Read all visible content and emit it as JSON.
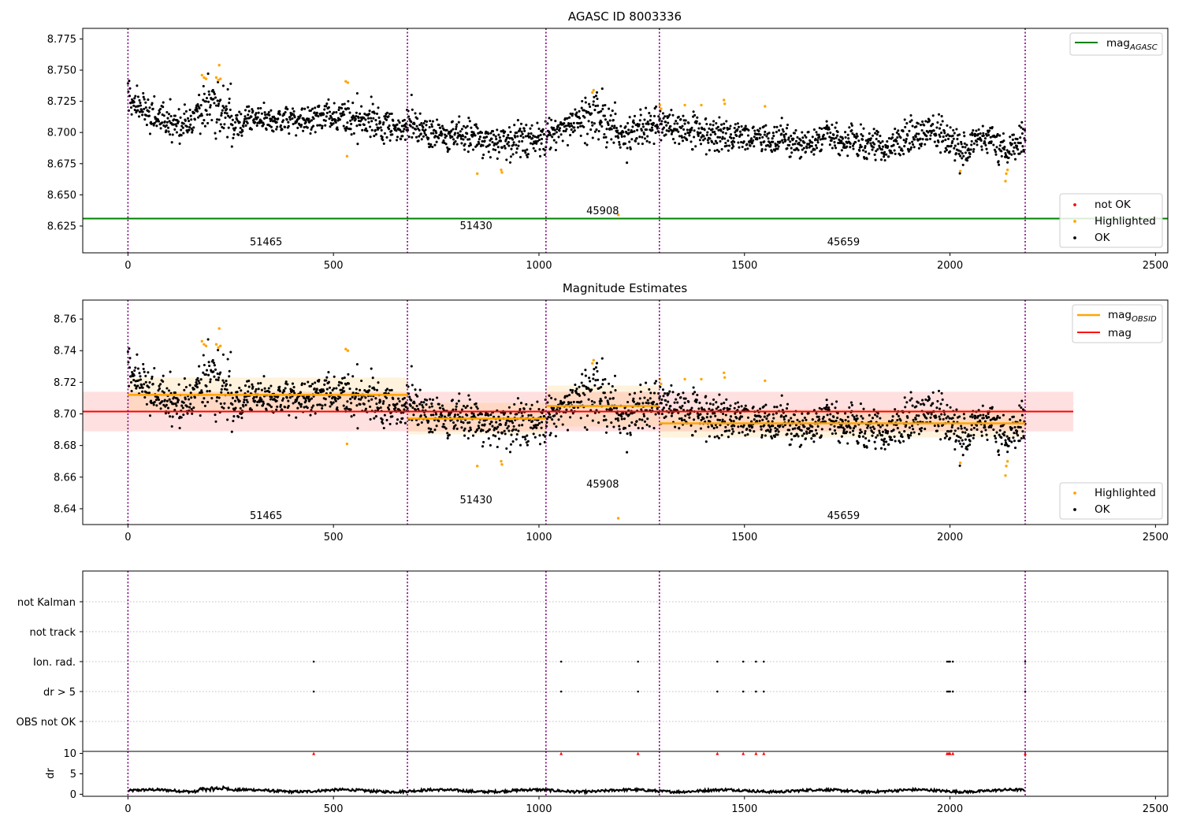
{
  "chart_data": [
    {
      "type": "scatter",
      "title": "AGASC ID 8003336",
      "xlim": [
        -110,
        2530
      ],
      "ylim": [
        8.6035,
        8.7835
      ],
      "xticks": [
        0,
        500,
        1000,
        1500,
        2000,
        2500
      ],
      "yticks": [
        8.625,
        8.65,
        8.675,
        8.7,
        8.725,
        8.75,
        8.775
      ],
      "ytick_labels": [
        "8.625",
        "8.650",
        "8.675",
        "8.700",
        "8.725",
        "8.750",
        "8.775"
      ],
      "obs_boundaries": [
        0,
        680,
        1017,
        1293,
        2183
      ],
      "obsid_labels": [
        {
          "text": "51465",
          "x": 336,
          "y": 8.612
        },
        {
          "text": "51430",
          "x": 847,
          "y": 8.625
        },
        {
          "text": "45908",
          "x": 1155,
          "y": 8.637
        },
        {
          "text": "45659",
          "x": 1741,
          "y": 8.612
        }
      ],
      "reference_line": {
        "name": "mag_AGASC",
        "y": 8.631,
        "x": [
          -110,
          2530
        ]
      },
      "segments": [
        {
          "x0": 0,
          "x1": 680,
          "mean": 8.712,
          "std": 0.011
        },
        {
          "x0": 680,
          "x1": 1017,
          "mean": 8.697,
          "std": 0.01
        },
        {
          "x0": 1017,
          "x1": 1293,
          "mean": 8.705,
          "std": 0.013
        },
        {
          "x0": 1293,
          "x1": 2183,
          "mean": 8.694,
          "std": 0.009
        }
      ],
      "highlighted_points": [
        {
          "x": 180,
          "y": 8.746
        },
        {
          "x": 185,
          "y": 8.744
        },
        {
          "x": 190,
          "y": 8.743
        },
        {
          "x": 215,
          "y": 8.744
        },
        {
          "x": 220,
          "y": 8.742
        },
        {
          "x": 222,
          "y": 8.754
        },
        {
          "x": 225,
          "y": 8.743
        },
        {
          "x": 530,
          "y": 8.741
        },
        {
          "x": 535,
          "y": 8.74
        },
        {
          "x": 533,
          "y": 8.681
        },
        {
          "x": 850,
          "y": 8.667
        },
        {
          "x": 908,
          "y": 8.67
        },
        {
          "x": 910,
          "y": 8.668
        },
        {
          "x": 1130,
          "y": 8.732
        },
        {
          "x": 1133,
          "y": 8.734
        },
        {
          "x": 1193,
          "y": 8.634
        },
        {
          "x": 1294,
          "y": 8.722
        },
        {
          "x": 1297,
          "y": 8.719
        },
        {
          "x": 1355,
          "y": 8.722
        },
        {
          "x": 1395,
          "y": 8.722
        },
        {
          "x": 1450,
          "y": 8.726
        },
        {
          "x": 1452,
          "y": 8.723
        },
        {
          "x": 1550,
          "y": 8.721
        },
        {
          "x": 2025,
          "y": 8.669
        },
        {
          "x": 2135,
          "y": 8.661
        },
        {
          "x": 2137,
          "y": 8.667
        },
        {
          "x": 2140,
          "y": 8.67
        }
      ],
      "legends": [
        {
          "label": "mag",
          "subscript": "AGASC",
          "color": "#008000",
          "kind": "line"
        },
        {
          "label": "not OK",
          "color": "#ff0000",
          "kind": "dot"
        },
        {
          "label": "Highlighted",
          "color": "#ffa500",
          "kind": "dot"
        },
        {
          "label": "OK",
          "color": "#000000",
          "kind": "dot"
        }
      ]
    },
    {
      "type": "scatter",
      "title": "Magnitude Estimates",
      "xlim": [
        -110,
        2530
      ],
      "ylim": [
        8.63,
        8.772
      ],
      "xticks": [
        0,
        500,
        1000,
        1500,
        2000,
        2500
      ],
      "yticks": [
        8.64,
        8.66,
        8.68,
        8.7,
        8.72,
        8.74,
        8.76
      ],
      "ytick_labels": [
        "8.64",
        "8.66",
        "8.68",
        "8.70",
        "8.72",
        "8.74",
        "8.76"
      ],
      "obs_boundaries": [
        0,
        680,
        1017,
        1293,
        2183
      ],
      "obsid_labels": [
        {
          "text": "51465",
          "x": 336,
          "y": 8.6355
        },
        {
          "text": "51430",
          "x": 847,
          "y": 8.6455
        },
        {
          "text": "45908",
          "x": 1155,
          "y": 8.6555
        },
        {
          "text": "45659",
          "x": 1741,
          "y": 8.6355
        }
      ],
      "overall_mag": {
        "name": "mag",
        "value": 8.7015,
        "std": 0.0125,
        "x": [
          -110,
          2300
        ]
      },
      "legends": [
        {
          "label": "mag",
          "subscript": "OBSID",
          "color": "#ffa500",
          "kind": "line"
        },
        {
          "label": "mag",
          "color": "#ff0000",
          "kind": "line"
        },
        {
          "label": "Highlighted",
          "color": "#ffa500",
          "kind": "dot"
        },
        {
          "label": "OK",
          "color": "#000000",
          "kind": "dot"
        }
      ]
    },
    {
      "type": "scatter",
      "categories": [
        "not Kalman",
        "not track",
        "Ion. rad.",
        "dr > 5",
        "OBS not OK"
      ],
      "xlim": [
        -110,
        2530
      ],
      "flag_x": {
        "Ion. rad.": [
          452,
          1054,
          1241,
          1434,
          1497,
          1528,
          1547,
          1993,
          1997,
          2000,
          2007,
          2183
        ],
        "dr > 5": [
          452,
          1054,
          1241,
          1434,
          1497,
          1528,
          1547,
          1993,
          1997,
          2000,
          2007,
          2183
        ]
      },
      "obs_boundaries": [
        0,
        680,
        1017,
        1293,
        2183
      ]
    },
    {
      "type": "line",
      "ylabel": "dr",
      "xlim": [
        -110,
        2530
      ],
      "ylim": [
        -0.5,
        10.5
      ],
      "yticks": [
        0,
        5,
        10
      ],
      "ytick_labels": [
        "0",
        "5",
        "10"
      ],
      "xticks": [
        0,
        500,
        1000,
        1500,
        2000,
        2500
      ],
      "clipped_x": [
        452,
        1054,
        1241,
        1434,
        1497,
        1528,
        1547,
        1993,
        1997,
        2000,
        2007,
        2183
      ],
      "clipped_value": 10,
      "obs_boundaries": [
        0,
        680,
        1017,
        1293,
        2183
      ]
    }
  ],
  "colors": {
    "ok": "#000000",
    "highlighted": "#ffa500",
    "not_ok": "#ff0000",
    "agasc_line": "#008000",
    "obsid_line": "#ffa500",
    "mag_line": "#ff0000",
    "boundary": "#800080"
  }
}
